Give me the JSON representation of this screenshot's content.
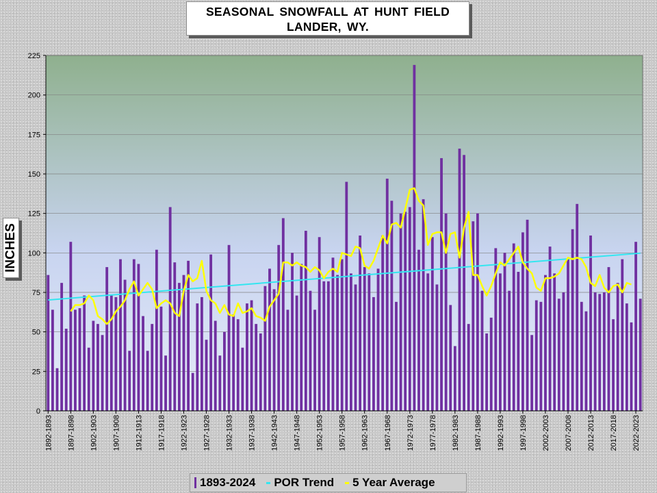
{
  "title_line1": "SEASONAL  SNOWFALL AT HUNT FIELD",
  "title_line2": "LANDER,  WY.",
  "colors": {
    "bar": "#7030a0",
    "trend": "#33e6f0",
    "avg": "#ffff00"
  },
  "chart_data": {
    "type": "bar",
    "ylabel": "INCHES",
    "ylim": [
      0,
      225
    ],
    "yticks": [
      0,
      25,
      50,
      75,
      100,
      125,
      150,
      175,
      200,
      225
    ],
    "grid": true,
    "legend_position": "bottom",
    "tick_labels": [
      "1892-1893",
      "1897-1898",
      "1902-1903",
      "1907-1908",
      "1912-1913",
      "1917-1918",
      "1922-1923",
      "1927-1928",
      "1932-1933",
      "1937-1938",
      "1942-1943",
      "1947-1948",
      "1952-1953",
      "1957-1958",
      "1962-1963",
      "1967-1968",
      "1972-1973",
      "1977-1978",
      "1982-1983",
      "1987-1988",
      "1992-1993",
      "1997-1998",
      "2002-2003",
      "2007-2008",
      "2012-2013",
      "2017-2018",
      "2022-2023"
    ],
    "tick_interval": 5,
    "first_season_start": 1892,
    "series": [
      {
        "name": "1893-2024",
        "type": "bar",
        "values": [
          86,
          64,
          27,
          81,
          52,
          107,
          64,
          65,
          73,
          40,
          57,
          55,
          48,
          91,
          73,
          72,
          96,
          83,
          38,
          96,
          93,
          60,
          38,
          55,
          102,
          66,
          35,
          129,
          94,
          81,
          86,
          95,
          24,
          68,
          72,
          45,
          99,
          57,
          35,
          50,
          105,
          61,
          58,
          40,
          68,
          70,
          55,
          49,
          79,
          90,
          77,
          105,
          122,
          64,
          100,
          73,
          93,
          114,
          76,
          64,
          110,
          82,
          82,
          97,
          86,
          96,
          145,
          87,
          80,
          111,
          91,
          87,
          72,
          90,
          111,
          147,
          133,
          69,
          125,
          126,
          129,
          219,
          102,
          134,
          87,
          110,
          80,
          160,
          125,
          67,
          41,
          166,
          162,
          55,
          120,
          125,
          76,
          49,
          59,
          103,
          87,
          100,
          76,
          106,
          88,
          113,
          121,
          48,
          70,
          69,
          86,
          104,
          87,
          71,
          75,
          96,
          115,
          131,
          69,
          63,
          111,
          75,
          74,
          75,
          91,
          58,
          81,
          96,
          68,
          56,
          107,
          71
        ]
      },
      {
        "name": "POR Trend",
        "type": "line",
        "points": [
          [
            0,
            70.2
          ],
          [
            131,
            99.8
          ]
        ]
      },
      {
        "name": "5 Year Average",
        "type": "line",
        "start_index": 5,
        "values": [
          63,
          67,
          67,
          68,
          73,
          70,
          60,
          58,
          55,
          58,
          63,
          66,
          70,
          77,
          82,
          73,
          77,
          81,
          77,
          65,
          68,
          70,
          68,
          62,
          60,
          76,
          86,
          82,
          84,
          95,
          76,
          70,
          68,
          62,
          67,
          61,
          60,
          68,
          62,
          63,
          65,
          60,
          59,
          57,
          66,
          70,
          74,
          94,
          94,
          92,
          94,
          92,
          91,
          88,
          91,
          89,
          84,
          88,
          90,
          88,
          100,
          99,
          98,
          104,
          103,
          92,
          90,
          95,
          103,
          111,
          106,
          118,
          119,
          116,
          128,
          140,
          141,
          133,
          130,
          105,
          112,
          113,
          113,
          100,
          112,
          113,
          97,
          116,
          126,
          86,
          86,
          79,
          73,
          79,
          87,
          94,
          92,
          96,
          100,
          104,
          94,
          90,
          87,
          78,
          76,
          84,
          84,
          85,
          87,
          92,
          97,
          96,
          97,
          96,
          91,
          81,
          79,
          86,
          78,
          75,
          79,
          80,
          75,
          81,
          80
        ]
      }
    ]
  }
}
